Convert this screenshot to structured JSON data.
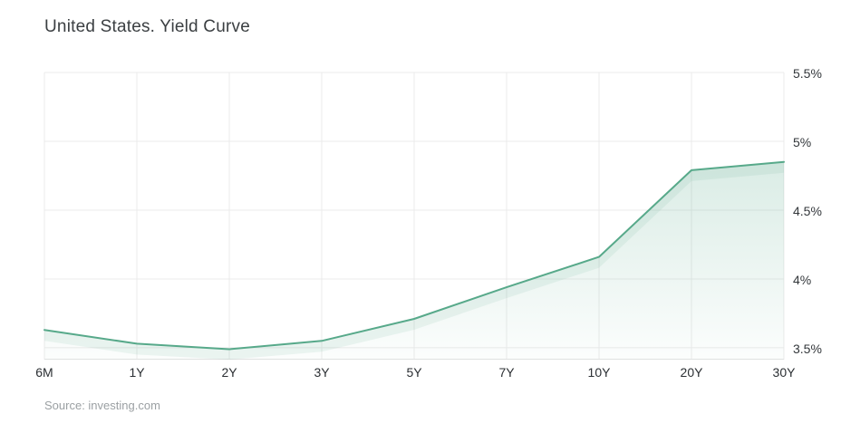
{
  "title": "United States. Yield Curve",
  "source": "Source: investing.com",
  "colors": {
    "line": "#57a98a",
    "area_rgb": "87,169,138",
    "grid": "#ebebeb",
    "axis_bottom": "#e2e2e2",
    "title_text": "#3b3f42",
    "tick_text": "#2d3134",
    "source_text": "#9ba0a3"
  },
  "chart_data": {
    "type": "area",
    "title": "United States. Yield Curve",
    "categories": [
      "6M",
      "1Y",
      "2Y",
      "3Y",
      "5Y",
      "7Y",
      "10Y",
      "20Y",
      "30Y"
    ],
    "values": [
      3.63,
      3.53,
      3.49,
      3.55,
      3.71,
      3.94,
      4.16,
      4.79,
      4.85
    ],
    "xlabel": "",
    "ylabel": "",
    "ylim": [
      3.414,
      5.5
    ],
    "y_ticks": [
      {
        "value": 5.5,
        "label": "5.5%"
      },
      {
        "value": 5.0,
        "label": "5%"
      },
      {
        "value": 4.5,
        "label": "4.5%"
      },
      {
        "value": 4.0,
        "label": "4%"
      },
      {
        "value": 3.5,
        "label": "3.5%"
      }
    ],
    "grid": true,
    "legend": "none",
    "source_caption": "Source: investing.com"
  }
}
